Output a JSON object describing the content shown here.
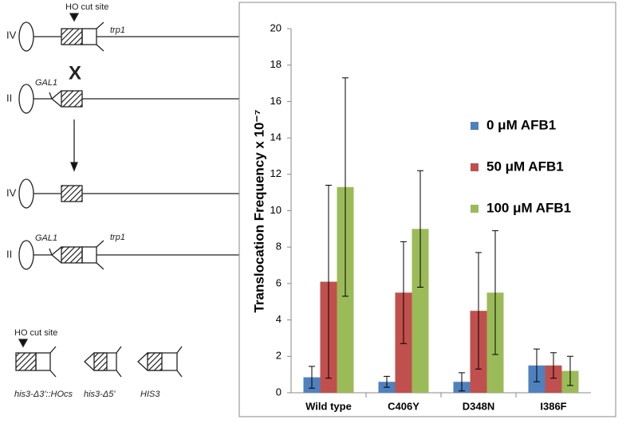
{
  "diagram": {
    "top_cut_site": "HO cut site",
    "row1_chr": "IV",
    "row1_gene": "trp1",
    "cross": "X",
    "row2_chr": "II",
    "row2_gene": "GAL1",
    "row3_chr": "IV",
    "row4_chr": "II",
    "row4_gene_left": "GAL1",
    "row4_gene_right": "trp1",
    "bottom_cut_site": "HO cut site",
    "allele1": "his3-Δ3'::HOcs",
    "allele2": "his3-Δ5'",
    "allele3": "HIS3"
  },
  "chart_data": {
    "type": "bar",
    "ylabel": "Translocation Frequency x 10⁻⁷",
    "categories": [
      "Wild type",
      "C406Y",
      "D348N",
      "I386F"
    ],
    "series": [
      {
        "name": "0 μM AFB1",
        "color": "#4f81bd",
        "values": [
          0.85,
          0.6,
          0.6,
          1.5
        ],
        "errors": [
          0.6,
          0.3,
          0.5,
          0.9
        ]
      },
      {
        "name": "50 μM AFB1",
        "color": "#c0504d",
        "values": [
          6.1,
          5.5,
          4.5,
          1.5
        ],
        "errors": [
          5.3,
          2.8,
          3.2,
          0.7
        ]
      },
      {
        "name": "100 μM AFB1",
        "color": "#9bbb59",
        "values": [
          11.3,
          9.0,
          5.5,
          1.2
        ],
        "errors": [
          6.0,
          3.2,
          3.4,
          0.8
        ]
      }
    ],
    "ylim": [
      0,
      20
    ],
    "yticks": [
      0,
      2,
      4,
      6,
      8,
      10,
      12,
      14,
      16,
      18,
      20
    ],
    "legend": "upper right"
  }
}
